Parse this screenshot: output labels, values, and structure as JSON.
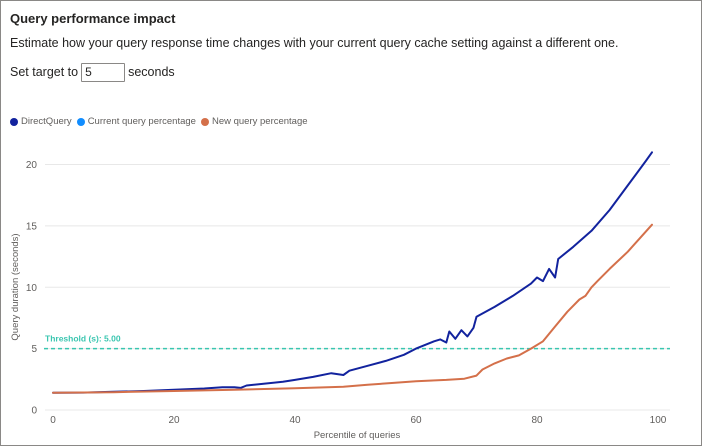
{
  "header": {
    "title": "Query performance impact",
    "description": "Estimate how your query response time changes with your current query cache setting against a different one."
  },
  "target": {
    "prefix": "Set target to",
    "value": "5",
    "suffix": "seconds"
  },
  "colors": {
    "directquery": "#12239e",
    "current": "#118dff",
    "new": "#d4704a",
    "threshold": "#3ac6b0",
    "grid": "#e8e8e8",
    "tick": "#605e5c"
  },
  "chart_data": {
    "type": "line",
    "xlabel": "Percentile of queries",
    "ylabel": "Query duration (seconds)",
    "xlim": [
      0,
      100
    ],
    "ylim": [
      0,
      22
    ],
    "x_ticks": [
      0,
      20,
      40,
      60,
      80,
      100
    ],
    "y_ticks": [
      0,
      5,
      10,
      15,
      20
    ],
    "grid": "horizontal",
    "legend_position": "top-left",
    "legend": [
      "DirectQuery",
      "Current query percentage",
      "New query percentage"
    ],
    "threshold": {
      "value": 5,
      "label": "Threshold (s): 5.00"
    },
    "series": [
      {
        "name": "DirectQuery",
        "color_key": "directquery",
        "points": [
          [
            0,
            1.4
          ],
          [
            5,
            1.42
          ],
          [
            10,
            1.48
          ],
          [
            15,
            1.55
          ],
          [
            20,
            1.65
          ],
          [
            25,
            1.75
          ],
          [
            28,
            1.85
          ],
          [
            30,
            1.85
          ],
          [
            31,
            1.8
          ],
          [
            32,
            2.0
          ],
          [
            35,
            2.15
          ],
          [
            38,
            2.3
          ],
          [
            40,
            2.45
          ],
          [
            43,
            2.7
          ],
          [
            46,
            3.0
          ],
          [
            48,
            2.85
          ],
          [
            49,
            3.2
          ],
          [
            52,
            3.6
          ],
          [
            55,
            4.0
          ],
          [
            58,
            4.5
          ],
          [
            60,
            5.0
          ],
          [
            63,
            5.6
          ],
          [
            64,
            5.75
          ],
          [
            65,
            5.5
          ],
          [
            65.5,
            6.4
          ],
          [
            66.5,
            5.8
          ],
          [
            67.5,
            6.5
          ],
          [
            68.5,
            6.0
          ],
          [
            69.5,
            6.7
          ],
          [
            70,
            7.6
          ],
          [
            73,
            8.4
          ],
          [
            76,
            9.3
          ],
          [
            79,
            10.3
          ],
          [
            80,
            10.8
          ],
          [
            81,
            10.5
          ],
          [
            82,
            11.5
          ],
          [
            83,
            10.8
          ],
          [
            83.5,
            12.3
          ],
          [
            86,
            13.3
          ],
          [
            89,
            14.6
          ],
          [
            92,
            16.3
          ],
          [
            95,
            18.3
          ],
          [
            98,
            20.3
          ],
          [
            99,
            21.0
          ]
        ]
      },
      {
        "name": "New query percentage",
        "color_key": "new",
        "points": [
          [
            0,
            1.4
          ],
          [
            10,
            1.45
          ],
          [
            20,
            1.55
          ],
          [
            30,
            1.65
          ],
          [
            40,
            1.78
          ],
          [
            48,
            1.9
          ],
          [
            52,
            2.05
          ],
          [
            56,
            2.2
          ],
          [
            60,
            2.35
          ],
          [
            65,
            2.45
          ],
          [
            68,
            2.55
          ],
          [
            70,
            2.8
          ],
          [
            71,
            3.3
          ],
          [
            73,
            3.8
          ],
          [
            75,
            4.2
          ],
          [
            77,
            4.45
          ],
          [
            79,
            5.0
          ],
          [
            81,
            5.6
          ],
          [
            83,
            6.8
          ],
          [
            85,
            8.0
          ],
          [
            87,
            9.0
          ],
          [
            88,
            9.3
          ],
          [
            89,
            10.0
          ],
          [
            90,
            10.5
          ],
          [
            92,
            11.5
          ],
          [
            95,
            12.9
          ],
          [
            97,
            14.0
          ],
          [
            99,
            15.1
          ]
        ]
      }
    ]
  }
}
